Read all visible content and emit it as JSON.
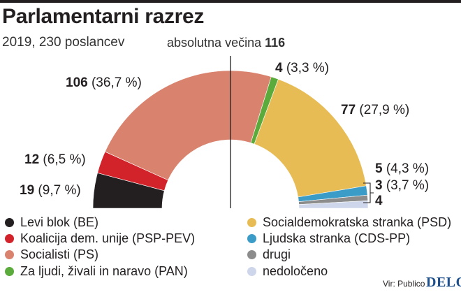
{
  "title": "Parlamentarni razrez",
  "subtitle": "2019, 230 poslancev",
  "majority": {
    "label": "absolutna večina",
    "value": "116"
  },
  "chart_data": {
    "type": "pie",
    "variant": "half-donut (parliament)",
    "total_seats": 230,
    "majority_seats": 116,
    "series": [
      {
        "name": "Levi blok (BE)",
        "seats": 19,
        "pct_label": "(9,7 %)",
        "color": "#231f20"
      },
      {
        "name": "Koalicija dem. unije (PSP-PEV)",
        "seats": 12,
        "pct_label": "(6,5 %)",
        "color": "#d2232a"
      },
      {
        "name": "Socialisti (PS)",
        "seats": 106,
        "pct_label": "(36,7 %)",
        "color": "#d9826d"
      },
      {
        "name": "Za ljudi, živali in naravo (PAN)",
        "seats": 4,
        "pct_label": "(3,3 %)",
        "color": "#5aab3c"
      },
      {
        "name": "Socialdemokratska stranka (PSD)",
        "seats": 77,
        "pct_label": "(27,9 %)",
        "color": "#e8bc55"
      },
      {
        "name": "Ljudska stranka (CDS-PP)",
        "seats": 5,
        "pct_label": "(4,3 %)",
        "color": "#3b9cc7"
      },
      {
        "name": "drugi",
        "seats": 3,
        "pct_label": "(3,7 %)",
        "color": "#8c8c8c"
      },
      {
        "name": "nedoločeno",
        "seats": 4,
        "pct_label": "",
        "color": "#cdd6ea"
      }
    ]
  },
  "source": "Vir: Publico",
  "logo": "DELO"
}
